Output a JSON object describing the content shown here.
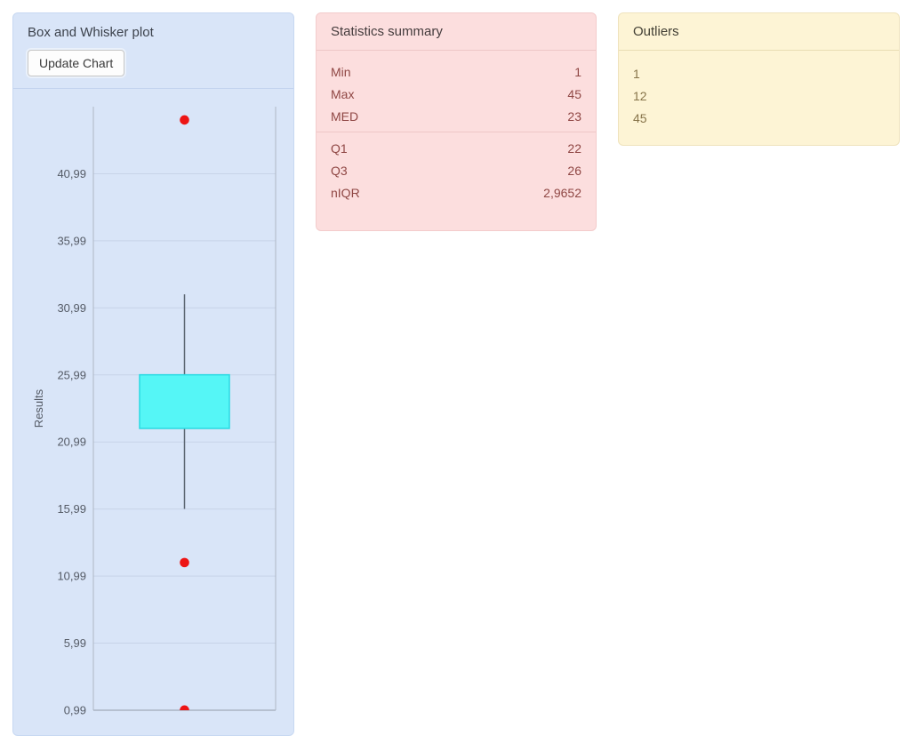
{
  "colors": {
    "chart_panel_bg": "#d9e5f8",
    "chart_panel_border": "#c7d8f2",
    "chart_panel_divider": "#c3d3ee",
    "stats_panel_bg": "#fcdede",
    "stats_panel_border": "#f3cccc",
    "stats_panel_divider": "#eec7c7",
    "stats_text": "#8f4744",
    "outliers_panel_bg": "#fdf4d5",
    "outliers_panel_border": "#efe3bd",
    "outliers_panel_divider": "#e9dcb4",
    "outliers_text": "#87744a"
  },
  "panels": {
    "chart": {
      "title": "Box and Whisker plot",
      "button_label": "Update Chart"
    },
    "stats": {
      "title": "Statistics summary",
      "rows_top": [
        {
          "label": "Min",
          "value": "1"
        },
        {
          "label": "Max",
          "value": "45"
        },
        {
          "label": "MED",
          "value": "23"
        }
      ],
      "rows_bottom": [
        {
          "label": "Q1",
          "value": "22"
        },
        {
          "label": "Q3",
          "value": "26"
        },
        {
          "label": "nIQR",
          "value": "2,9652"
        }
      ]
    },
    "outliers": {
      "title": "Outliers",
      "items": [
        "1",
        "12",
        "45"
      ]
    }
  },
  "chart_data": {
    "type": "boxplot",
    "title": "",
    "xlabel": "",
    "ylabel": "Results",
    "ylim": [
      0.99,
      45.99
    ],
    "yticks": [
      0.99,
      5.99,
      10.99,
      15.99,
      20.99,
      25.99,
      30.99,
      35.99,
      40.99
    ],
    "decimal_separator": ",",
    "grid": true,
    "series": [
      {
        "name": "Results",
        "min": 1,
        "max": 45,
        "median": 23,
        "q1": 22,
        "q3": 26,
        "niqr": 2.9652,
        "whisker_low": 16,
        "whisker_high": 32,
        "outliers": [
          1,
          12,
          45
        ]
      }
    ],
    "colors": {
      "box_fill": "#55f6f6",
      "box_stroke": "#29d9e2",
      "whisker": "#5c6672",
      "outlier": "#ed1515",
      "grid": "#c7d3e8",
      "axis": "#939ca8",
      "axis_side": "#aeb7c4",
      "tick_text": "#555b66"
    }
  }
}
